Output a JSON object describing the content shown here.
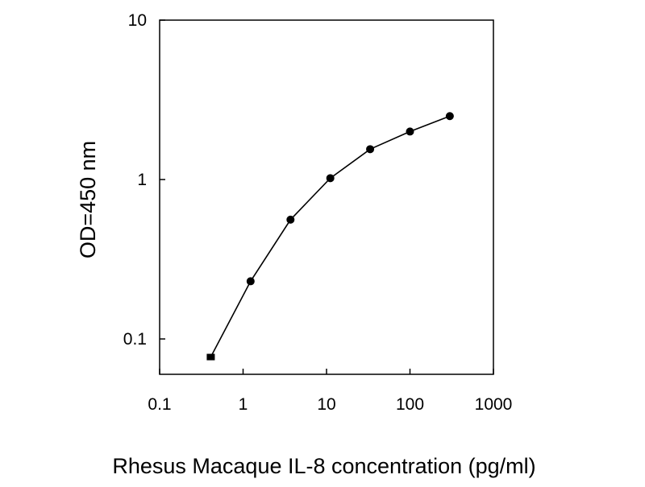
{
  "chart_data": {
    "type": "line",
    "title": "",
    "xlabel": "Rhesus Macaque IL-8 concentration (pg/ml)",
    "ylabel": "OD=450 nm",
    "x_scale": "log",
    "y_scale": "log",
    "xlim": [
      0.1,
      1000
    ],
    "ylim": [
      0.06,
      10
    ],
    "x_ticks": [
      "0.1",
      "1",
      "10",
      "100",
      "1000"
    ],
    "y_ticks": [
      "0.1",
      "1",
      "10"
    ],
    "grid": false,
    "colors": {
      "line": "#000000",
      "marker": "#000000",
      "frame": "#000000"
    },
    "series": [
      {
        "x": [
          0.41,
          1.23,
          3.7,
          11.1,
          33.3,
          100,
          300
        ],
        "y": [
          0.077,
          0.23,
          0.56,
          1.02,
          1.55,
          2.0,
          2.5
        ]
      }
    ]
  }
}
